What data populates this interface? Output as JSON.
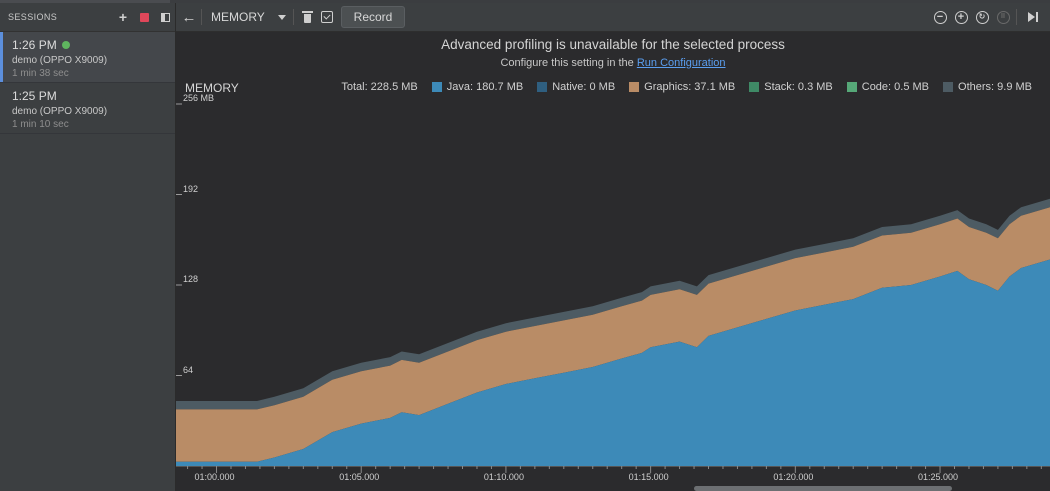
{
  "sessions": {
    "title": "SESSIONS",
    "items": [
      {
        "time": "1:26 PM",
        "device": "demo (OPPO X9009)",
        "duration": "1 min 38 sec",
        "live": true
      },
      {
        "time": "1:25 PM",
        "device": "demo (OPPO X9009)",
        "duration": "1 min 10 sec",
        "live": false
      }
    ]
  },
  "toolbar": {
    "profiler": "MEMORY",
    "record_label": "Record"
  },
  "banner": {
    "title": "Advanced profiling is unavailable for the selected process",
    "sub_prefix": "Configure this setting in the ",
    "link": "Run Configuration"
  },
  "chart_data": {
    "type": "area",
    "title": "MEMORY",
    "total": "Total: 228.5 MB",
    "legend": [
      {
        "label": "Java: 180.7 MB",
        "color": "#3d8ab8"
      },
      {
        "label": "Native: 0 MB",
        "color": "#2f5f80"
      },
      {
        "label": "Graphics: 37.1 MB",
        "color": "#b98c66"
      },
      {
        "label": "Stack: 0.3 MB",
        "color": "#3f8a66"
      },
      {
        "label": "Code: 0.5 MB",
        "color": "#56a878"
      },
      {
        "label": "Others: 9.9 MB",
        "color": "#4d5b63"
      }
    ],
    "y_ticks": [
      {
        "label": "256 MB",
        "value": 256
      },
      {
        "label": "192",
        "value": 192
      },
      {
        "label": "128",
        "value": 128
      },
      {
        "label": "64",
        "value": 64
      }
    ],
    "ylim": [
      0,
      256
    ],
    "x_ticks": [
      {
        "label": "01:00.000",
        "t": 60
      },
      {
        "label": "01:05.000",
        "t": 65
      },
      {
        "label": "01:10.000",
        "t": 70
      },
      {
        "label": "01:15.000",
        "t": 75
      },
      {
        "label": "01:20.000",
        "t": 80
      },
      {
        "label": "01:25.000",
        "t": 85
      }
    ],
    "xlim": [
      58.6,
      88.8
    ],
    "t": [
      58.6,
      61.4,
      62.0,
      63.0,
      64.0,
      65.0,
      66.0,
      66.4,
      67.0,
      68.0,
      69.0,
      70.0,
      71.0,
      72.0,
      73.0,
      74.0,
      74.7,
      75.0,
      76.0,
      76.6,
      77.0,
      78.0,
      79.0,
      80.0,
      81.0,
      82.0,
      83.0,
      84.0,
      85.0,
      85.6,
      86.0,
      86.6,
      87.0,
      87.4,
      87.8,
      88.8
    ],
    "java": [
      3,
      3,
      6,
      12,
      24,
      30,
      34,
      38,
      36,
      44,
      52,
      58,
      62,
      66,
      70,
      76,
      80,
      84,
      88,
      84,
      92,
      98,
      104,
      110,
      114,
      118,
      126,
      128,
      134,
      138,
      132,
      128,
      124,
      134,
      140,
      146
    ],
    "graphics": [
      37,
      37,
      37,
      37,
      37,
      37,
      37,
      37,
      37,
      37,
      37,
      37,
      37,
      37,
      37,
      37,
      37,
      37,
      37,
      37,
      37,
      37,
      37,
      37,
      37,
      37,
      37,
      37,
      37,
      37,
      37,
      37,
      37,
      37,
      37,
      37
    ],
    "others": [
      6,
      6,
      6,
      6,
      6,
      6,
      6,
      6,
      6,
      6,
      6,
      6,
      6,
      6,
      6,
      6,
      6,
      6,
      6,
      6,
      6,
      6,
      6,
      6,
      6,
      6,
      6,
      6,
      6,
      6,
      6,
      6,
      6,
      6,
      6,
      6
    ]
  }
}
